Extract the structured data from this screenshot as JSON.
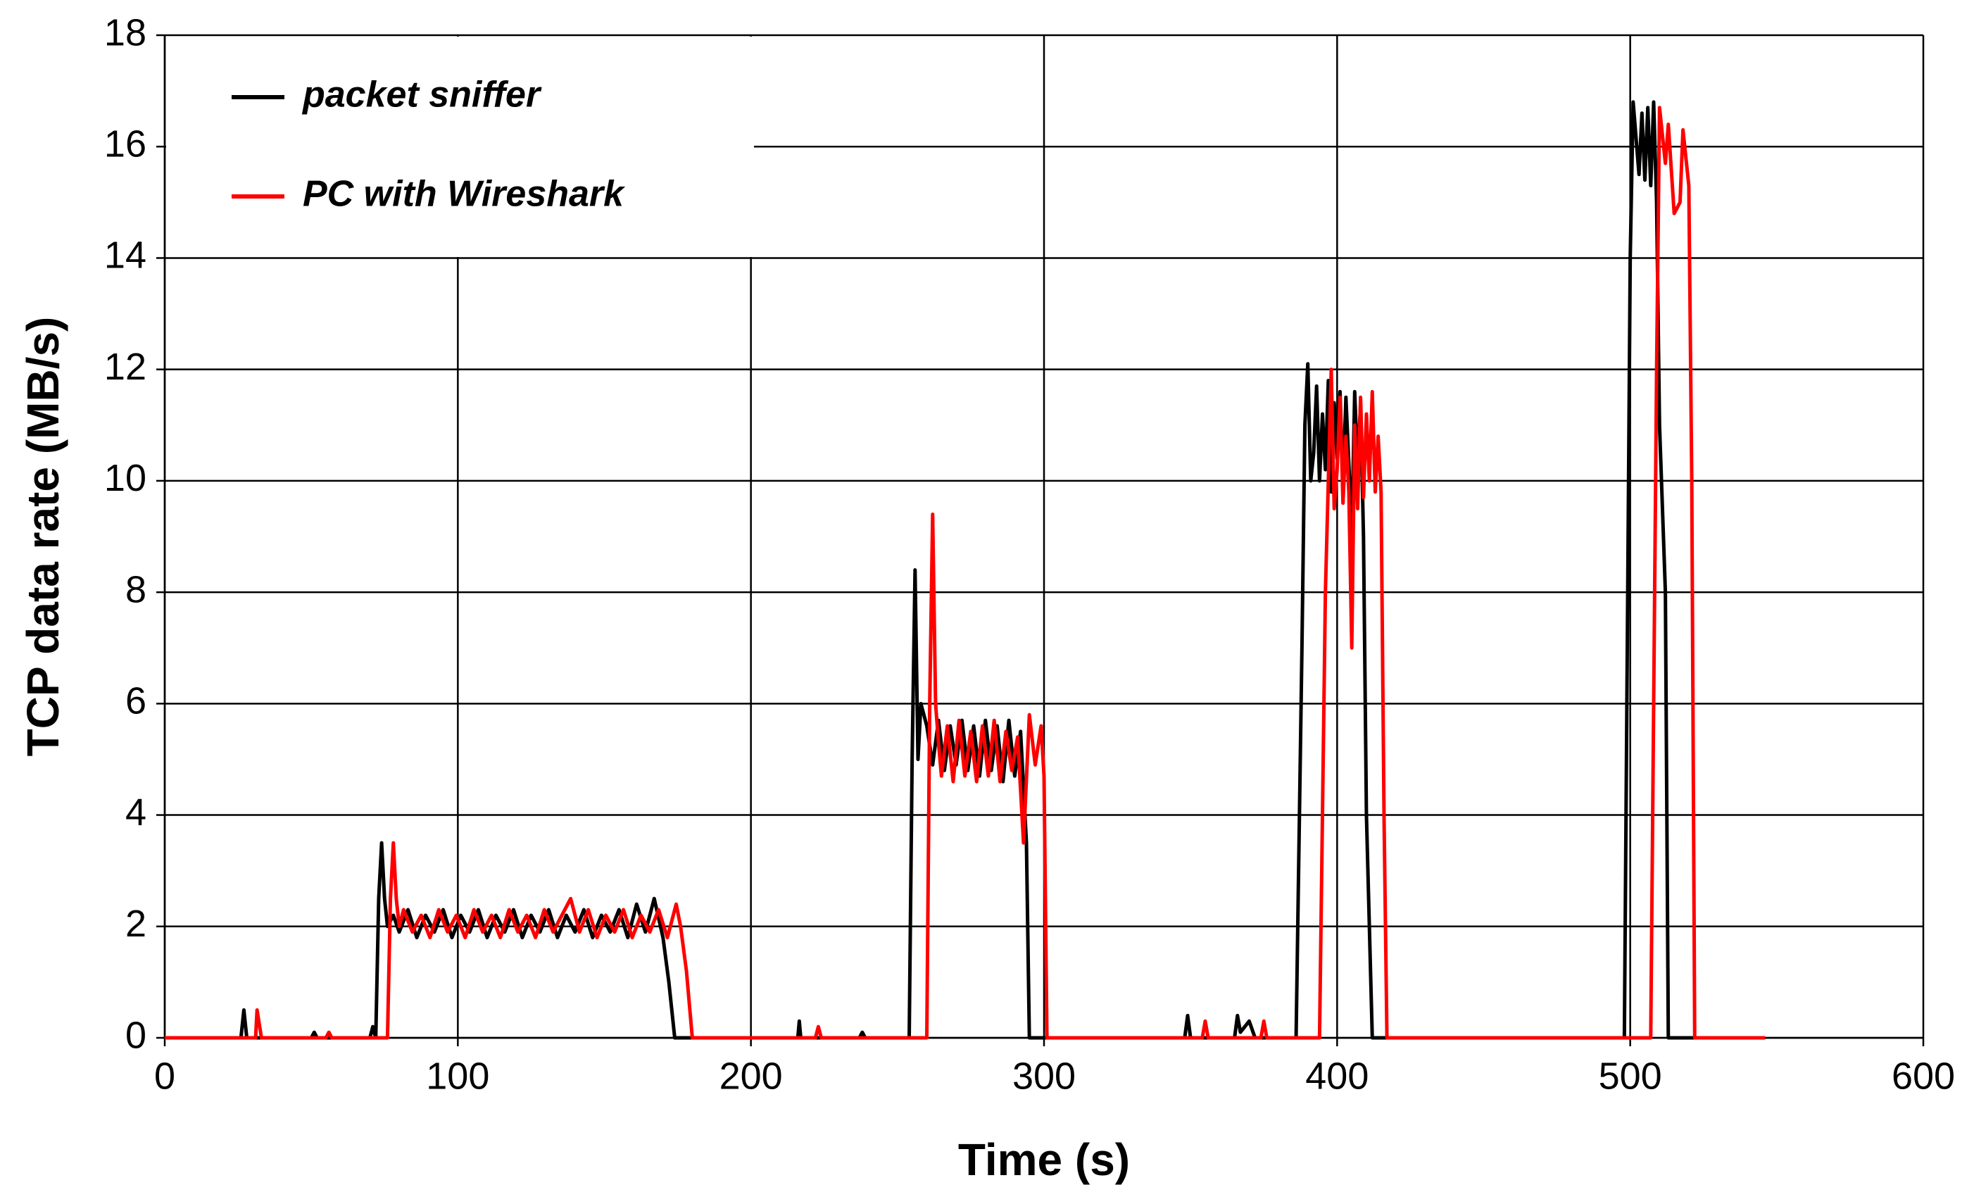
{
  "chart_data": {
    "type": "line",
    "xlabel": "Time (s)",
    "ylabel": "TCP data rate (MB/s)",
    "xlim": [
      0,
      600
    ],
    "ylim": [
      0,
      18
    ],
    "xticks": [
      0,
      100,
      200,
      300,
      400,
      500,
      600
    ],
    "yticks": [
      0,
      2,
      4,
      6,
      8,
      10,
      12,
      14,
      16,
      18
    ],
    "grid": true,
    "legend": "upper left",
    "series": [
      {
        "name": "packet sniffer",
        "color": "#000000",
        "x": [
          0,
          26,
          27,
          28,
          50,
          51,
          52,
          70,
          71,
          72,
          73,
          74,
          75,
          76,
          78,
          80,
          83,
          86,
          89,
          92,
          95,
          98,
          101,
          104,
          107,
          110,
          113,
          116,
          119,
          122,
          125,
          128,
          131,
          134,
          137,
          140,
          143,
          146,
          149,
          152,
          155,
          158,
          161,
          164,
          167,
          170,
          172,
          174,
          216,
          216.5,
          217,
          237,
          238,
          239,
          254,
          255,
          256,
          257,
          258,
          260,
          262,
          264,
          266,
          268,
          270,
          272,
          274,
          276,
          278,
          280,
          282,
          284,
          286,
          288,
          290,
          292,
          294,
          295,
          348,
          349,
          350,
          365,
          366,
          367,
          370,
          372,
          386,
          388,
          389,
          390,
          391,
          392,
          393,
          394,
          395,
          396,
          397,
          398,
          399,
          400,
          401,
          402,
          403,
          404,
          405,
          406,
          407,
          408,
          409,
          410,
          412,
          498,
          500,
          501,
          503,
          504,
          505,
          506,
          507,
          508,
          509,
          510,
          512,
          513,
          546
        ],
        "values": [
          0,
          0,
          0.5,
          0,
          0,
          0.1,
          0,
          0,
          0.2,
          0,
          2.5,
          3.5,
          2.5,
          2.0,
          2.2,
          1.9,
          2.3,
          1.8,
          2.2,
          1.9,
          2.3,
          1.8,
          2.2,
          1.9,
          2.3,
          1.8,
          2.2,
          1.9,
          2.3,
          1.8,
          2.2,
          1.9,
          2.3,
          1.8,
          2.2,
          1.9,
          2.3,
          1.8,
          2.2,
          1.9,
          2.3,
          1.8,
          2.4,
          1.9,
          2.5,
          1.8,
          1.0,
          0,
          0,
          0.3,
          0,
          0,
          0.1,
          0,
          0,
          5,
          8.4,
          5,
          6,
          5.6,
          4.9,
          5.7,
          4.8,
          5.6,
          4.9,
          5.7,
          4.8,
          5.6,
          4.7,
          5.7,
          4.8,
          5.6,
          4.6,
          5.7,
          4.7,
          5.5,
          3.5,
          0,
          0,
          0.4,
          0,
          0,
          0.4,
          0.1,
          0.3,
          0,
          0,
          7,
          11,
          12.1,
          10,
          10.5,
          11.7,
          10,
          11.2,
          10.2,
          11.8,
          9.8,
          11.4,
          10.4,
          11.6,
          9.9,
          11.5,
          10.3,
          9,
          11.6,
          10.2,
          11.4,
          9,
          4,
          0,
          0,
          14,
          16.8,
          15.5,
          16.6,
          15.4,
          16.7,
          15.3,
          16.8,
          15,
          11,
          8,
          0,
          0
        ]
      },
      {
        "name": "PC with Wireshark",
        "color": "#ff0000",
        "x": [
          0,
          31,
          31.5,
          33,
          55,
          56,
          57,
          76,
          77,
          78,
          79,
          80,
          81.5,
          84.5,
          87.5,
          90.5,
          93.5,
          96.5,
          99.5,
          102.5,
          105.5,
          108.5,
          111.5,
          114.5,
          117.5,
          120.5,
          123.5,
          126.5,
          129.5,
          132.5,
          135.5,
          138.5,
          141.5,
          144.5,
          147.5,
          150.5,
          153.5,
          156.5,
          159.5,
          162.5,
          165.5,
          168.5,
          171.5,
          174.5,
          176,
          178,
          180,
          222,
          223,
          224,
          260,
          261,
          262,
          263,
          264,
          265,
          267,
          269,
          271,
          273,
          275,
          277,
          279,
          281,
          283,
          285,
          287,
          289,
          291,
          293,
          295,
          297,
          299,
          300,
          301,
          354,
          355,
          356,
          374,
          375,
          376,
          394,
          396,
          397,
          398,
          399,
          400,
          401,
          402,
          403,
          404,
          405,
          406,
          407,
          408,
          409,
          410,
          411,
          412,
          413,
          414,
          415,
          416,
          417,
          507,
          509,
          510,
          512,
          513,
          515,
          517,
          518,
          520,
          521,
          522,
          546
        ],
        "values": [
          0,
          0,
          0.5,
          0,
          0,
          0.1,
          0,
          0,
          2.5,
          3.5,
          2.5,
          2.0,
          2.3,
          1.9,
          2.2,
          1.8,
          2.3,
          1.9,
          2.2,
          1.8,
          2.3,
          1.9,
          2.2,
          1.8,
          2.3,
          1.9,
          2.2,
          1.8,
          2.3,
          1.9,
          2.2,
          2.5,
          1.9,
          2.3,
          1.8,
          2.2,
          1.9,
          2.3,
          1.8,
          2.2,
          1.9,
          2.3,
          1.8,
          2.4,
          2.0,
          1.2,
          0,
          0,
          0.2,
          0,
          0,
          6,
          9.4,
          6,
          5.3,
          4.7,
          5.6,
          4.6,
          5.7,
          4.7,
          5.5,
          4.6,
          5.6,
          4.7,
          5.7,
          4.6,
          5.5,
          4.8,
          5.4,
          3.5,
          5.8,
          4.9,
          5.6,
          4.7,
          0,
          0,
          0.3,
          0,
          0,
          0.3,
          0,
          0,
          8,
          10,
          12,
          9.5,
          10.2,
          11.5,
          9.6,
          10.8,
          9.8,
          7,
          11,
          9.5,
          11.5,
          9.7,
          11.2,
          10,
          11.6,
          9.8,
          10.8,
          9.8,
          4,
          0,
          0,
          12,
          16.7,
          15.7,
          16.4,
          14.8,
          15,
          16.3,
          15.3,
          10,
          0,
          0
        ]
      }
    ]
  }
}
